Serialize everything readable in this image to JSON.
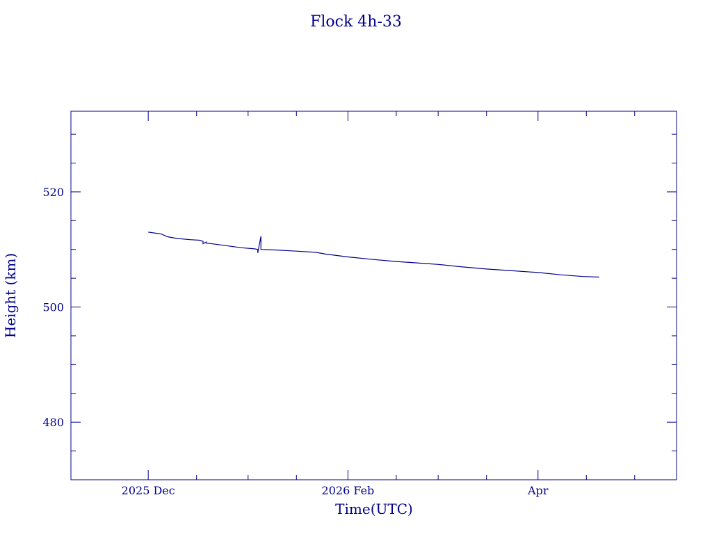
{
  "chart_data": {
    "type": "line",
    "title": "Flock 4h-33",
    "xlabel": "Time(UTC)",
    "ylabel": "Height (km)",
    "color": "#00008b",
    "xlim": [
      "2025-11-07",
      "2026-05-14"
    ],
    "ylim": [
      470,
      534
    ],
    "x_major_ticks": [
      {
        "date": "2025-12-01",
        "label": "2025 Dec"
      },
      {
        "date": "2026-02-01",
        "label": "2026 Feb"
      },
      {
        "date": "2026-04-01",
        "label": "Apr"
      }
    ],
    "x_minor_ticks": [
      "2025-12-16",
      "2026-01-01",
      "2026-01-16",
      "2026-02-16",
      "2026-03-01",
      "2026-03-16",
      "2026-04-16",
      "2026-05-01"
    ],
    "y_major_ticks": [
      480,
      500,
      520
    ],
    "y_minor_ticks": [
      475,
      485,
      490,
      495,
      505,
      510,
      515,
      525,
      530
    ],
    "grid": false,
    "series": [
      {
        "values": [
          [
            "2025-12-01",
            513.0
          ],
          [
            "2025-12-05",
            512.7
          ],
          [
            "2025-12-07",
            512.2
          ],
          [
            "2025-12-10",
            511.9
          ],
          [
            "2025-12-14",
            511.7
          ],
          [
            "2025-12-17",
            511.6
          ],
          [
            "2025-12-18",
            511.4
          ],
          [
            "2025-12-18",
            511.0
          ],
          [
            "2025-12-19",
            511.3
          ],
          [
            "2025-12-19",
            511.1
          ],
          [
            "2025-12-22",
            510.9
          ],
          [
            "2025-12-26",
            510.6
          ],
          [
            "2025-12-30",
            510.3
          ],
          [
            "2026-01-03",
            510.1
          ],
          [
            "2026-01-04",
            510.0
          ],
          [
            "2026-01-04",
            509.4
          ],
          [
            "2026-01-05",
            512.3
          ],
          [
            "2026-01-05",
            510.0
          ],
          [
            "2026-01-10",
            509.9
          ],
          [
            "2026-01-16",
            509.7
          ],
          [
            "2026-01-22",
            509.5
          ],
          [
            "2026-01-25",
            509.2
          ],
          [
            "2026-02-01",
            508.7
          ],
          [
            "2026-02-08",
            508.3
          ],
          [
            "2026-02-16",
            507.9
          ],
          [
            "2026-02-24",
            507.6
          ],
          [
            "2026-03-01",
            507.4
          ],
          [
            "2026-03-08",
            507.0
          ],
          [
            "2026-03-16",
            506.6
          ],
          [
            "2026-03-24",
            506.3
          ],
          [
            "2026-04-01",
            506.0
          ],
          [
            "2026-04-08",
            505.6
          ],
          [
            "2026-04-15",
            505.3
          ],
          [
            "2026-04-20",
            505.2
          ]
        ]
      }
    ]
  }
}
